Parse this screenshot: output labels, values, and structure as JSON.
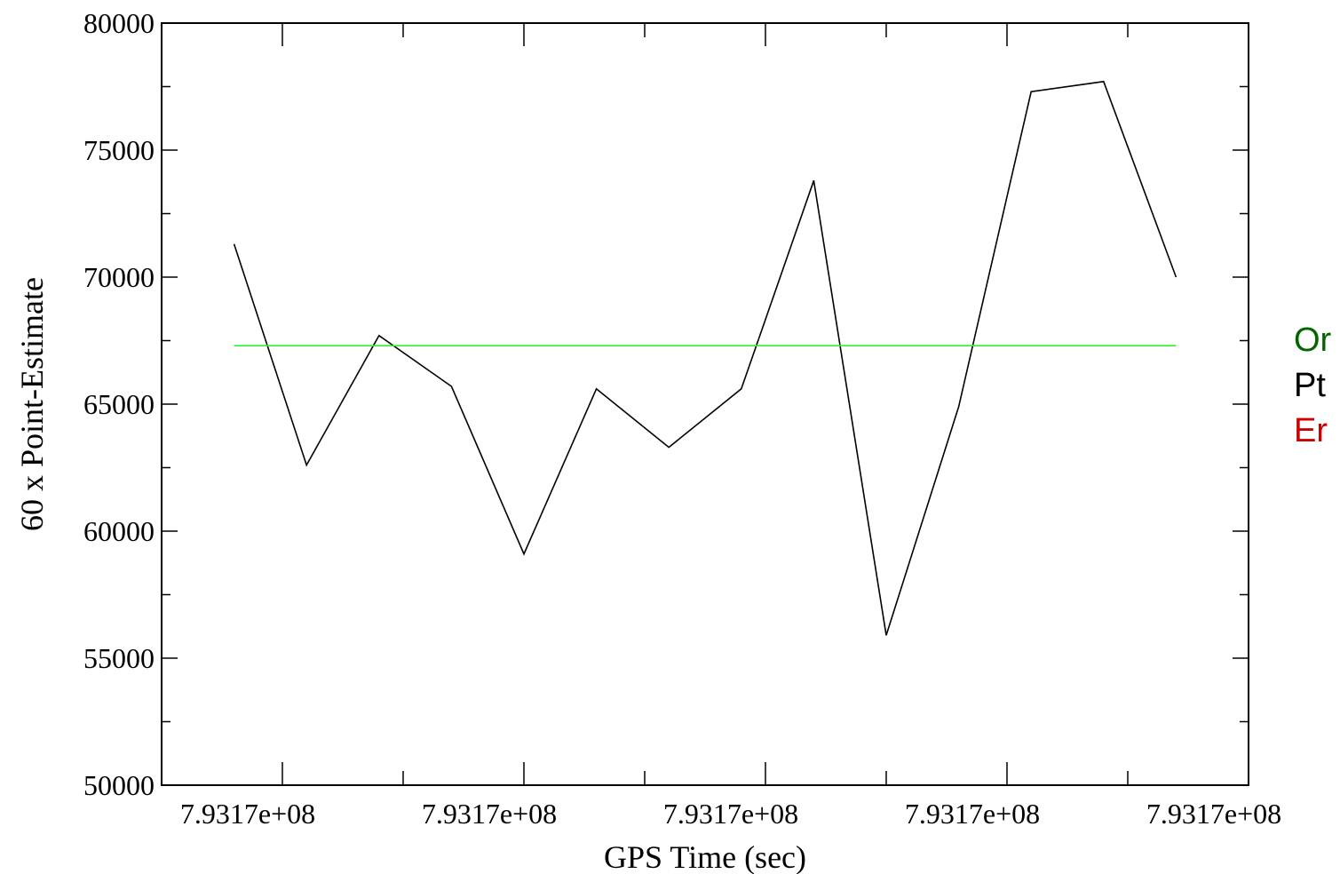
{
  "chart_data": {
    "type": "line",
    "xlabel": "GPS Time (sec)",
    "ylabel": "60 x Point-Estimate",
    "ylim": [
      50000,
      80000
    ],
    "xlim": [
      0,
      9
    ],
    "x_tick_labels": [
      "7.9317e+08",
      "7.9317e+08",
      "7.9317e+08",
      "7.9317e+08",
      "7.9317e+08"
    ],
    "x_tick_positions": [
      1,
      3,
      5,
      7,
      9
    ],
    "y_ticks": [
      50000,
      55000,
      60000,
      65000,
      70000,
      75000,
      80000
    ],
    "y_tick_labels": [
      "50000",
      "55000",
      "60000",
      "65000",
      "70000",
      "75000",
      "80000"
    ],
    "grid": false,
    "legend_placement": "right, outside plot (clipped)",
    "series": [
      {
        "color": "#000000",
        "x": [
          0.6,
          1.2,
          1.8,
          2.4,
          3.0,
          3.6,
          4.2,
          4.8,
          5.4,
          6.0,
          6.6,
          7.2,
          7.8,
          8.4
        ],
        "y": [
          71300,
          62600,
          67700,
          65700,
          59100,
          65600,
          63300,
          65600,
          73800,
          55900,
          64900,
          77300,
          77700,
          70000
        ]
      },
      {
        "color": "#33ee33",
        "x": [
          0.6,
          8.4
        ],
        "y": [
          67300,
          67300
        ]
      }
    ],
    "legend_fragments": [
      {
        "text": "Or",
        "color": "#006600"
      },
      {
        "text": "Pt",
        "color": "#000000"
      },
      {
        "text": "Er",
        "color": "#cc0000"
      }
    ]
  }
}
